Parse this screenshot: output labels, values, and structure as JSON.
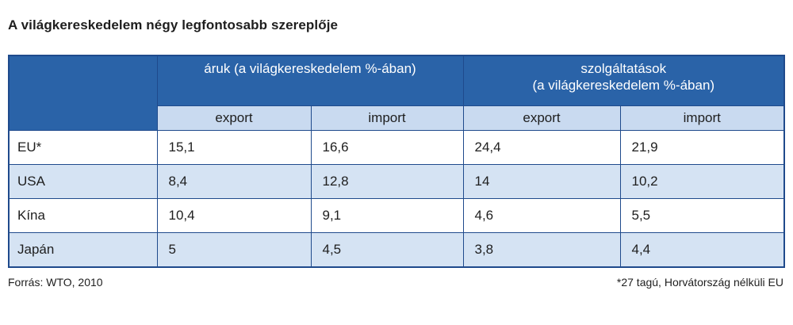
{
  "title": "A világkereskedelem négy legfontosabb szereplője",
  "table": {
    "group_headers": [
      "áruk (a világkereskedelem %-ában)",
      "szolgáltatások\n(a világkereskedelem %-ában)"
    ],
    "sub_headers": [
      "export",
      "import",
      "export",
      "import"
    ],
    "rows": [
      {
        "label": "EU*",
        "values": [
          "15,1",
          "16,6",
          "24,4",
          "21,9"
        ]
      },
      {
        "label": "USA",
        "values": [
          "8,4",
          "12,8",
          "14",
          "10,2"
        ]
      },
      {
        "label": "Kína",
        "values": [
          "10,4",
          "9,1",
          "4,6",
          "5,5"
        ]
      },
      {
        "label": "Japán",
        "values": [
          "5",
          "4,5",
          "3,8",
          "4,4"
        ]
      }
    ]
  },
  "footer": {
    "source": "Forrás: WTO, 2010",
    "note": "*27 tagú, Horvátország nélküli EU"
  },
  "colors": {
    "header_blue": "#2a63a8",
    "subheader_light_blue": "#c9daf0",
    "stripe_blue": "#d5e3f3",
    "border_blue": "#1f4a8c"
  }
}
